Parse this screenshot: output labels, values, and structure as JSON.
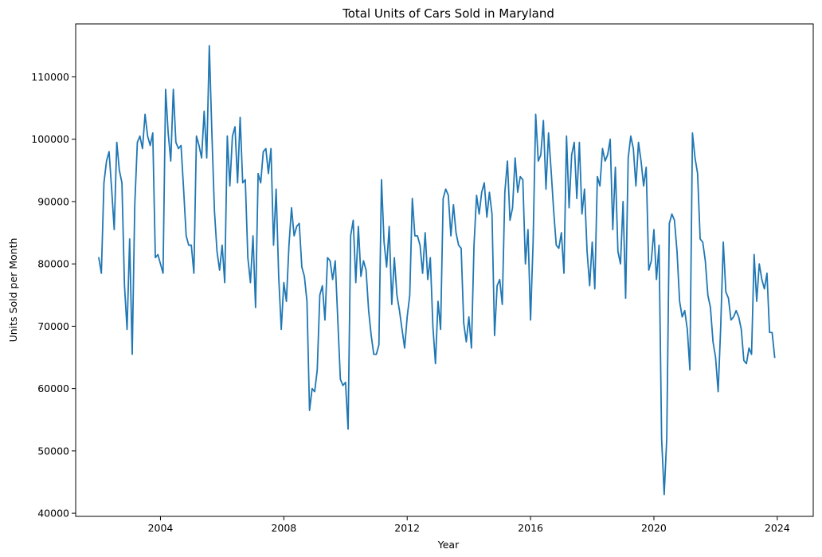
{
  "chart_data": {
    "type": "line",
    "title": "Total Units of Cars Sold in Maryland",
    "xlabel": "Year",
    "ylabel": "Units Sold per Month",
    "xlim": [
      "2001-04-01",
      "2025-03-01"
    ],
    "ylim": [
      39500,
      118500
    ],
    "x_ticks": [
      {
        "value": "2004-01-01",
        "label": "2004"
      },
      {
        "value": "2008-01-01",
        "label": "2008"
      },
      {
        "value": "2012-01-01",
        "label": "2012"
      },
      {
        "value": "2016-01-01",
        "label": "2016"
      },
      {
        "value": "2020-01-01",
        "label": "2020"
      },
      {
        "value": "2024-01-01",
        "label": "2024"
      }
    ],
    "y_ticks": [
      {
        "value": 40000,
        "label": "40000"
      },
      {
        "value": 50000,
        "label": "50000"
      },
      {
        "value": 60000,
        "label": "60000"
      },
      {
        "value": 70000,
        "label": "70000"
      },
      {
        "value": 80000,
        "label": "80000"
      },
      {
        "value": 90000,
        "label": "90000"
      },
      {
        "value": 100000,
        "label": "100000"
      },
      {
        "value": 110000,
        "label": "110000"
      }
    ],
    "grid": false,
    "line_color": "#1f77b4",
    "series": [
      {
        "start": "2002-01",
        "frequency": "monthly",
        "values": [
          81000,
          78500,
          93000,
          96500,
          98000,
          92000,
          85500,
          99500,
          95000,
          93000,
          76500,
          69500,
          84000,
          65500,
          89500,
          99500,
          100500,
          98500,
          104000,
          100500,
          99000,
          101000,
          81000,
          81500,
          80000,
          78500,
          108000,
          101000,
          96500,
          108000,
          99500,
          98500,
          99000,
          92000,
          84500,
          83000,
          83000,
          78500,
          100500,
          99000,
          97000,
          104500,
          97000,
          115000,
          101000,
          88500,
          82000,
          79000,
          83000,
          77000,
          100500,
          92500,
          100500,
          102000,
          93000,
          103500,
          93000,
          93500,
          81000,
          77000,
          84500,
          73000,
          94500,
          93000,
          98000,
          98500,
          94500,
          98500,
          83000,
          92000,
          78000,
          69500,
          77000,
          74000,
          83000,
          89000,
          84500,
          86000,
          86500,
          79500,
          78000,
          74000,
          56500,
          60000,
          59500,
          63000,
          75000,
          76500,
          71000,
          81000,
          80500,
          77500,
          80500,
          71000,
          61500,
          60500,
          61000,
          53500,
          84500,
          87000,
          77000,
          86000,
          78000,
          80500,
          79000,
          72500,
          68500,
          65500,
          65500,
          67000,
          93500,
          83500,
          79500,
          86000,
          73500,
          81000,
          75000,
          72500,
          69500,
          66500,
          71500,
          75000,
          90500,
          84500,
          84500,
          83000,
          78500,
          85000,
          77500,
          81000,
          70000,
          64000,
          74000,
          69500,
          90500,
          92000,
          91000,
          84500,
          89500,
          85000,
          83000,
          82500,
          70500,
          67500,
          71500,
          66500,
          83000,
          91000,
          88000,
          91500,
          93000,
          87500,
          91500,
          88000,
          68500,
          76500,
          77500,
          73500,
          91500,
          96500,
          87000,
          89000,
          97000,
          91500,
          94000,
          93500,
          80000,
          85500,
          71000,
          83500,
          104000,
          96500,
          97500,
          103000,
          92000,
          101000,
          95000,
          88500,
          83000,
          82500,
          85000,
          78500,
          100500,
          89000,
          97500,
          99500,
          90500,
          99500,
          88000,
          92000,
          82000,
          76500,
          83500,
          76000,
          94000,
          92500,
          98500,
          96500,
          97500,
          100000,
          85500,
          95500,
          82000,
          80000,
          90000,
          74500,
          97000,
          100500,
          98500,
          92500,
          99500,
          96500,
          92500,
          95500,
          79000,
          80500,
          85500,
          77500,
          83000,
          52000,
          43000,
          52000,
          86500,
          88000,
          87000,
          82000,
          74000,
          71500,
          72500,
          69500,
          63000,
          101000,
          97000,
          94500,
          84000,
          83500,
          80500,
          75000,
          73000,
          67500,
          65000,
          59500,
          70000,
          83500,
          75500,
          74500,
          71000,
          71500,
          72500,
          71500,
          69500,
          64500,
          64000,
          66500,
          65500,
          81500,
          74000,
          80000,
          77500,
          76000,
          78500,
          69000,
          69000,
          65000
        ]
      }
    ]
  }
}
